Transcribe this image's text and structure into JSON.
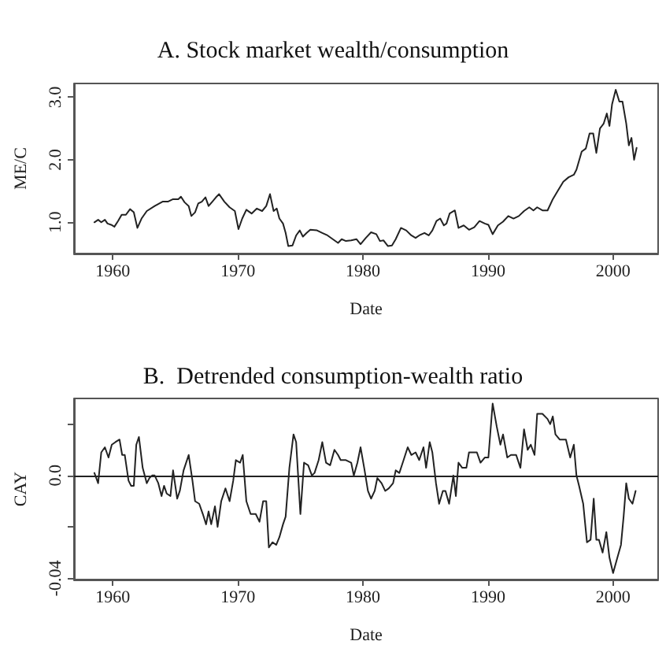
{
  "chart_data": [
    {
      "type": "line",
      "title": "A. Stock market wealth/consumption",
      "xlabel": "Date",
      "ylabel": "ME/C",
      "xlim": [
        1956.9,
        2003.6
      ],
      "xticks": [
        1960,
        1970,
        1980,
        1990,
        2000
      ],
      "ylim": [
        0.5,
        3.22
      ],
      "yticks": [
        {
          "value": 1,
          "label": "1.0"
        },
        {
          "value": 2,
          "label": "2.0"
        },
        {
          "value": 3,
          "label": "3.0"
        }
      ],
      "grid": false,
      "marker": "none",
      "line_style": "solid",
      "series": [
        {
          "color": "#222222",
          "x": [
            1958.53,
            1958.83,
            1959.08,
            1959.37,
            1959.58,
            1959.87,
            1960.13,
            1960.42,
            1960.71,
            1961.05,
            1961.38,
            1961.68,
            1961.97,
            1962.3,
            1962.72,
            1963.35,
            1963.98,
            1964.4,
            1964.82,
            1965.24,
            1965.45,
            1965.74,
            1966.07,
            1966.28,
            1966.58,
            1966.83,
            1967.12,
            1967.41,
            1967.66,
            1967.96,
            1968.25,
            1968.5,
            1968.92,
            1969.34,
            1969.76,
            1970.05,
            1970.35,
            1970.68,
            1971.1,
            1971.52,
            1971.94,
            1972.27,
            1972.57,
            1972.86,
            1973.11,
            1973.32,
            1973.61,
            1973.82,
            1974.03,
            1974.37,
            1974.66,
            1974.95,
            1975.2,
            1975.5,
            1975.79,
            1976.33,
            1976.75,
            1977.17,
            1977.59,
            1978.01,
            1978.3,
            1978.64,
            1979.06,
            1979.48,
            1979.81,
            1980.23,
            1980.65,
            1981.07,
            1981.36,
            1981.65,
            1981.99,
            1982.32,
            1982.62,
            1983.04,
            1983.46,
            1983.87,
            1984.21,
            1984.5,
            1984.92,
            1985.26,
            1985.55,
            1985.88,
            1986.18,
            1986.47,
            1986.68,
            1986.93,
            1987.35,
            1987.64,
            1988.06,
            1988.48,
            1988.9,
            1989.32,
            1989.74,
            1990.03,
            1990.37,
            1990.79,
            1991.2,
            1991.62,
            1992.04,
            1992.46,
            1992.88,
            1993.3,
            1993.63,
            1993.93,
            1994.35,
            1994.76,
            1995.18,
            1995.6,
            1996.02,
            1996.44,
            1996.86,
            1997.07,
            1997.49,
            1997.82,
            1998.12,
            1998.41,
            1998.66,
            1998.95,
            1999.25,
            1999.5,
            1999.71,
            1999.92,
            2000.21,
            2000.5,
            2000.75,
            2001.05,
            2001.26,
            2001.47,
            2001.68,
            2001.88
          ],
          "values": [
            1.0,
            1.04,
            1.0,
            1.04,
            0.98,
            0.96,
            0.93,
            1.02,
            1.12,
            1.12,
            1.21,
            1.16,
            0.91,
            1.06,
            1.18,
            1.26,
            1.33,
            1.33,
            1.37,
            1.37,
            1.41,
            1.32,
            1.26,
            1.1,
            1.16,
            1.3,
            1.33,
            1.4,
            1.26,
            1.33,
            1.4,
            1.45,
            1.33,
            1.24,
            1.18,
            0.89,
            1.06,
            1.2,
            1.14,
            1.22,
            1.18,
            1.26,
            1.45,
            1.18,
            1.22,
            1.06,
            0.98,
            0.83,
            0.62,
            0.63,
            0.79,
            0.87,
            0.77,
            0.83,
            0.88,
            0.87,
            0.83,
            0.79,
            0.73,
            0.67,
            0.73,
            0.7,
            0.71,
            0.73,
            0.65,
            0.75,
            0.84,
            0.81,
            0.7,
            0.71,
            0.62,
            0.63,
            0.73,
            0.91,
            0.87,
            0.79,
            0.75,
            0.79,
            0.83,
            0.79,
            0.87,
            1.02,
            1.06,
            0.95,
            0.98,
            1.14,
            1.19,
            0.91,
            0.95,
            0.88,
            0.92,
            1.02,
            0.98,
            0.96,
            0.81,
            0.95,
            1.01,
            1.1,
            1.06,
            1.1,
            1.18,
            1.24,
            1.19,
            1.24,
            1.19,
            1.19,
            1.37,
            1.51,
            1.65,
            1.72,
            1.76,
            1.84,
            2.13,
            2.18,
            2.42,
            2.42,
            2.11,
            2.5,
            2.58,
            2.74,
            2.54,
            2.89,
            3.12,
            2.93,
            2.93,
            2.58,
            2.23,
            2.35,
            2.0,
            2.19
          ]
        }
      ]
    },
    {
      "type": "line",
      "title": "B.  Detrended consumption-wealth ratio",
      "xlabel": "Date",
      "ylabel": "CAY",
      "xlim": [
        1956.9,
        2003.6
      ],
      "xticks": [
        1960,
        1970,
        1980,
        1990,
        2000
      ],
      "ylim": [
        -0.0405,
        0.03
      ],
      "yticks": [
        {
          "value": -0.04,
          "label": "-0.04"
        },
        {
          "value": -0.02,
          "label": null
        },
        {
          "value": 0,
          "label": "0.0"
        },
        {
          "value": 0.02,
          "label": null
        }
      ],
      "grid": false,
      "marker": "none",
      "line_style": "solid",
      "ref_lines": [
        {
          "axis": "y",
          "value": 0,
          "color": "#222222"
        }
      ],
      "series": [
        {
          "color": "#222222",
          "x": [
            1958.53,
            1958.83,
            1959.08,
            1959.37,
            1959.66,
            1959.92,
            1960.21,
            1960.54,
            1960.75,
            1960.96,
            1961.26,
            1961.47,
            1961.68,
            1961.88,
            1962.09,
            1962.39,
            1962.72,
            1962.93,
            1963.14,
            1963.35,
            1963.64,
            1963.9,
            1964.1,
            1964.31,
            1964.61,
            1964.82,
            1965.15,
            1965.36,
            1965.66,
            1966.07,
            1966.37,
            1966.58,
            1966.91,
            1967.2,
            1967.46,
            1967.66,
            1967.87,
            1968.17,
            1968.38,
            1968.67,
            1969.01,
            1969.34,
            1969.63,
            1969.84,
            1970.18,
            1970.39,
            1970.68,
            1971.02,
            1971.43,
            1971.73,
            1972.02,
            1972.27,
            1972.48,
            1972.77,
            1973.07,
            1973.32,
            1973.61,
            1973.82,
            1974.12,
            1974.45,
            1974.66,
            1975.0,
            1975.29,
            1975.62,
            1975.92,
            1976.13,
            1976.46,
            1976.75,
            1977.05,
            1977.38,
            1977.72,
            1978.01,
            1978.22,
            1978.64,
            1979.06,
            1979.27,
            1979.56,
            1979.81,
            1980.1,
            1980.4,
            1980.65,
            1980.94,
            1981.15,
            1981.49,
            1981.78,
            1982.07,
            1982.41,
            1982.62,
            1982.91,
            1983.25,
            1983.58,
            1983.87,
            1984.21,
            1984.5,
            1984.84,
            1985.05,
            1985.34,
            1985.55,
            1985.84,
            1986.09,
            1986.39,
            1986.6,
            1986.89,
            1987.23,
            1987.43,
            1987.64,
            1987.94,
            1988.27,
            1988.48,
            1989.11,
            1989.4,
            1989.74,
            1990.03,
            1990.37,
            1990.7,
            1990.99,
            1991.2,
            1991.54,
            1991.83,
            1992.25,
            1992.59,
            1992.88,
            1993.17,
            1993.42,
            1993.72,
            1993.93,
            1994.35,
            1994.76,
            1994.97,
            1995.18,
            1995.39,
            1995.73,
            1996.23,
            1996.57,
            1996.86,
            1997.07,
            1997.28,
            1997.61,
            1997.91,
            1998.2,
            1998.45,
            1998.66,
            1998.87,
            1999.16,
            1999.46,
            1999.71,
            2000.0,
            2000.34,
            2000.63,
            2000.84,
            2001.05,
            2001.26,
            2001.55,
            2001.8
          ],
          "values": [
            0.001,
            -0.003,
            0.009,
            0.011,
            0.007,
            0.012,
            0.013,
            0.014,
            0.008,
            0.008,
            -0.002,
            -0.004,
            -0.004,
            0.012,
            0.015,
            0.003,
            -0.003,
            -0.001,
            0.0,
            0.0,
            -0.003,
            -0.008,
            -0.004,
            -0.007,
            -0.008,
            0.002,
            -0.009,
            -0.006,
            0.002,
            0.008,
            -0.002,
            -0.01,
            -0.011,
            -0.015,
            -0.019,
            -0.014,
            -0.019,
            -0.012,
            -0.02,
            -0.01,
            -0.005,
            -0.01,
            -0.002,
            0.006,
            0.005,
            0.008,
            -0.01,
            -0.015,
            -0.015,
            -0.018,
            -0.01,
            -0.01,
            -0.028,
            -0.026,
            -0.027,
            -0.024,
            -0.019,
            -0.016,
            0.003,
            0.016,
            0.013,
            -0.015,
            0.005,
            0.004,
            0.0,
            0.001,
            0.006,
            0.013,
            0.005,
            0.004,
            0.01,
            0.008,
            0.006,
            0.006,
            0.005,
            0.0,
            0.005,
            0.011,
            0.003,
            -0.006,
            -0.009,
            -0.006,
            -0.001,
            -0.003,
            -0.006,
            -0.005,
            -0.003,
            0.002,
            0.001,
            0.006,
            0.011,
            0.008,
            0.009,
            0.006,
            0.011,
            0.003,
            0.013,
            0.009,
            -0.003,
            -0.011,
            -0.006,
            -0.006,
            -0.011,
            0.0,
            -0.008,
            0.005,
            0.003,
            0.003,
            0.009,
            0.009,
            0.005,
            0.007,
            0.007,
            0.028,
            0.019,
            0.012,
            0.016,
            0.007,
            0.008,
            0.008,
            0.003,
            0.018,
            0.01,
            0.012,
            0.008,
            0.024,
            0.024,
            0.022,
            0.02,
            0.023,
            0.016,
            0.014,
            0.014,
            0.007,
            0.012,
            0.0,
            -0.004,
            -0.011,
            -0.026,
            -0.025,
            -0.009,
            -0.025,
            -0.025,
            -0.03,
            -0.022,
            -0.032,
            -0.038,
            -0.032,
            -0.027,
            -0.016,
            -0.003,
            -0.009,
            -0.011,
            -0.006
          ]
        }
      ]
    }
  ]
}
